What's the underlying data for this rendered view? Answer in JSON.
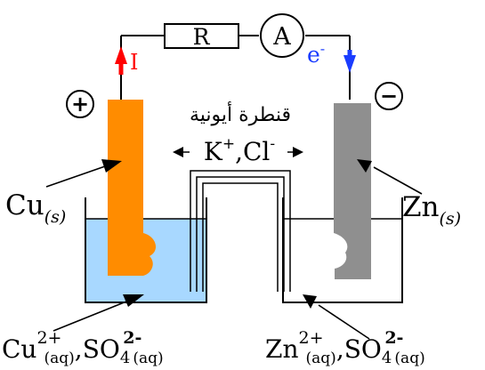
{
  "resistor_label": "R",
  "ammeter_label": "A",
  "current_label": "I",
  "electron_label": "e",
  "electron_superscript": "-",
  "positive_sign": "+",
  "negative_sign": "−",
  "salt_bridge_label": "قنطرة أيونية",
  "bridge_ions": {
    "k": "K",
    "k_charge": "+",
    "separator": ",",
    "cl": "Cl",
    "cl_charge": "-"
  },
  "cu_electrode": {
    "symbol": "Cu",
    "state": "(s)"
  },
  "zn_electrode": {
    "symbol": "Zn",
    "state": "(s)"
  },
  "cu_solution": {
    "cation": "Cu",
    "cation_charge": "2+",
    "cation_state": "(aq)",
    "separator": ",",
    "anion": "SO",
    "anion_subscript": "4",
    "anion_charge": "2-",
    "anion_state": "(aq)"
  },
  "zn_solution": {
    "cation": "Zn",
    "cation_charge": "2+",
    "cation_state": "(aq)",
    "separator": ",",
    "anion": "SO",
    "anion_subscript": "4",
    "anion_charge": "2-",
    "anion_state": "(aq)"
  },
  "colors": {
    "copper": "#ff8c00",
    "zinc": "#8f8f8f",
    "cu_solution": "#a8d8ff",
    "current_arrow": "#ff0000",
    "electron_arrow": "#1a3cff",
    "wire": "#000000"
  }
}
